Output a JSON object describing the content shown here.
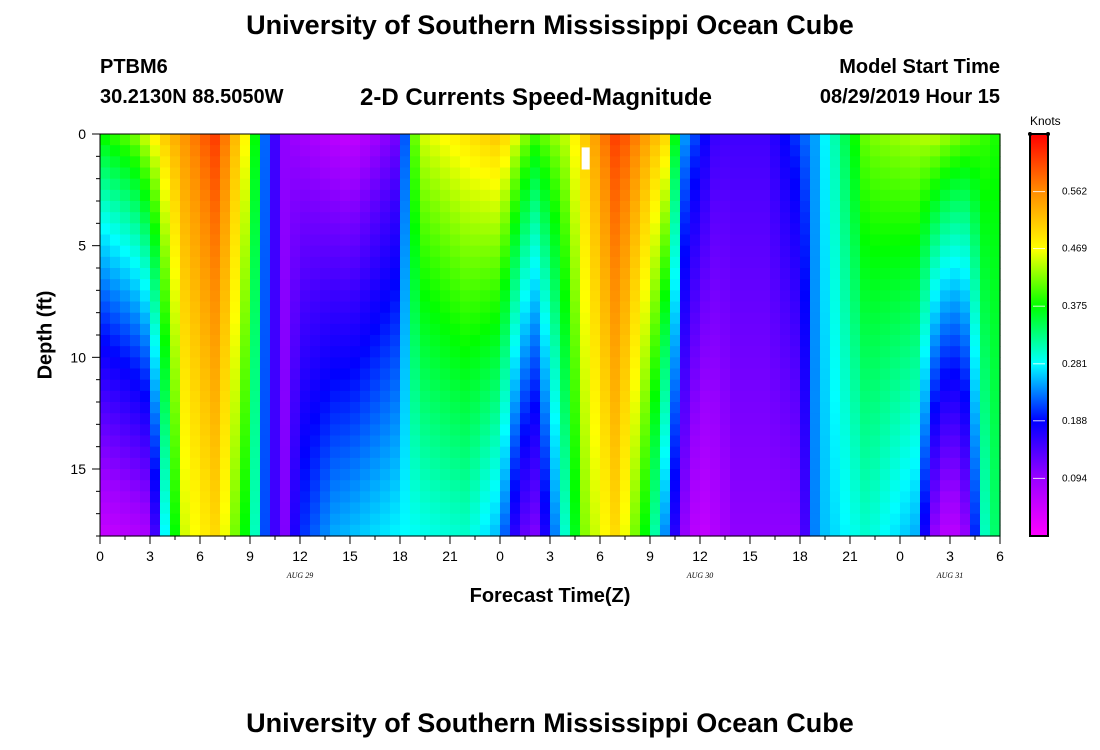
{
  "header": {
    "title": "University of Southern Mississippi Ocean Cube",
    "station": "PTBM6",
    "coordinates": "30.2130N 88.5050W",
    "subtitle": "2-D Currents Speed-Magnitude",
    "model_start_label": "Model Start Time",
    "model_start_value": "08/29/2019 Hour 15"
  },
  "footer": {
    "title": "University of Southern Mississippi Ocean Cube"
  },
  "chart_data": {
    "type": "heatmap",
    "xlabel": "Forecast Time(Z)",
    "ylabel": "Depth (ft)",
    "x_range_hours": [
      0,
      54
    ],
    "y_range_ft": [
      0,
      18
    ],
    "y_inverted": true,
    "x_tick_labels": [
      "0",
      "3",
      "6",
      "9",
      "12",
      "15",
      "18",
      "21",
      "0",
      "3",
      "6",
      "9",
      "12",
      "15",
      "18",
      "21",
      "0",
      "3",
      "6"
    ],
    "y_tick_labels": [
      "0",
      "5",
      "10",
      "15"
    ],
    "day_labels": [
      {
        "text": "AUG 29",
        "hour": 12
      },
      {
        "text": "AUG 30",
        "hour": 36
      },
      {
        "text": "AUG 31",
        "hour": 51
      }
    ],
    "colorbar": {
      "units": "Knots",
      "min": 0.0,
      "max": 0.656,
      "tick_labels": [
        "0.094",
        "0.188",
        "0.281",
        "0.375",
        "0.469",
        "0.562"
      ],
      "colors": [
        "#ff00ff",
        "#9a00ff",
        "#0000ff",
        "#00ffff",
        "#00ff00",
        "#ffff00",
        "#ff8c00",
        "#ff0000"
      ]
    },
    "surface_profile_knots": [
      {
        "hour": 0,
        "v": 0.38
      },
      {
        "hour": 2,
        "v": 0.42
      },
      {
        "hour": 4,
        "v": 0.52
      },
      {
        "hour": 7,
        "v": 0.62
      },
      {
        "hour": 9,
        "v": 0.45
      },
      {
        "hour": 10,
        "v": 0.2
      },
      {
        "hour": 11,
        "v": 0.1
      },
      {
        "hour": 15,
        "v": 0.05
      },
      {
        "hour": 18,
        "v": 0.12
      },
      {
        "hour": 19,
        "v": 0.45
      },
      {
        "hour": 24,
        "v": 0.52
      },
      {
        "hour": 26,
        "v": 0.4
      },
      {
        "hour": 28,
        "v": 0.45
      },
      {
        "hour": 31,
        "v": 0.62
      },
      {
        "hour": 34,
        "v": 0.5
      },
      {
        "hour": 35,
        "v": 0.25
      },
      {
        "hour": 37,
        "v": 0.15
      },
      {
        "hour": 40,
        "v": 0.15
      },
      {
        "hour": 43,
        "v": 0.25
      },
      {
        "hour": 46,
        "v": 0.42
      },
      {
        "hour": 50,
        "v": 0.45
      },
      {
        "hour": 54,
        "v": 0.38
      }
    ],
    "bottom_profile_knots": [
      {
        "hour": 0,
        "v": 0.05
      },
      {
        "hour": 3,
        "v": 0.08
      },
      {
        "hour": 4,
        "v": 0.3
      },
      {
        "hour": 5,
        "v": 0.45
      },
      {
        "hour": 7,
        "v": 0.5
      },
      {
        "hour": 9,
        "v": 0.35
      },
      {
        "hour": 10,
        "v": 0.2
      },
      {
        "hour": 11,
        "v": 0.1
      },
      {
        "hour": 12,
        "v": 0.2
      },
      {
        "hour": 14,
        "v": 0.25
      },
      {
        "hour": 18,
        "v": 0.28
      },
      {
        "hour": 22,
        "v": 0.3
      },
      {
        "hour": 24,
        "v": 0.25
      },
      {
        "hour": 25,
        "v": 0.15
      },
      {
        "hour": 26,
        "v": 0.1
      },
      {
        "hour": 27,
        "v": 0.2
      },
      {
        "hour": 29,
        "v": 0.42
      },
      {
        "hour": 31,
        "v": 0.5
      },
      {
        "hour": 33,
        "v": 0.35
      },
      {
        "hour": 35,
        "v": 0.1
      },
      {
        "hour": 36,
        "v": 0.05
      },
      {
        "hour": 38,
        "v": 0.1
      },
      {
        "hour": 42,
        "v": 0.1
      },
      {
        "hour": 43,
        "v": 0.25
      },
      {
        "hour": 46,
        "v": 0.3
      },
      {
        "hour": 49,
        "v": 0.25
      },
      {
        "hour": 50,
        "v": 0.1
      },
      {
        "hour": 51,
        "v": 0.05
      },
      {
        "hour": 52,
        "v": 0.1
      },
      {
        "hour": 53,
        "v": 0.3
      },
      {
        "hour": 54,
        "v": 0.35
      }
    ]
  }
}
